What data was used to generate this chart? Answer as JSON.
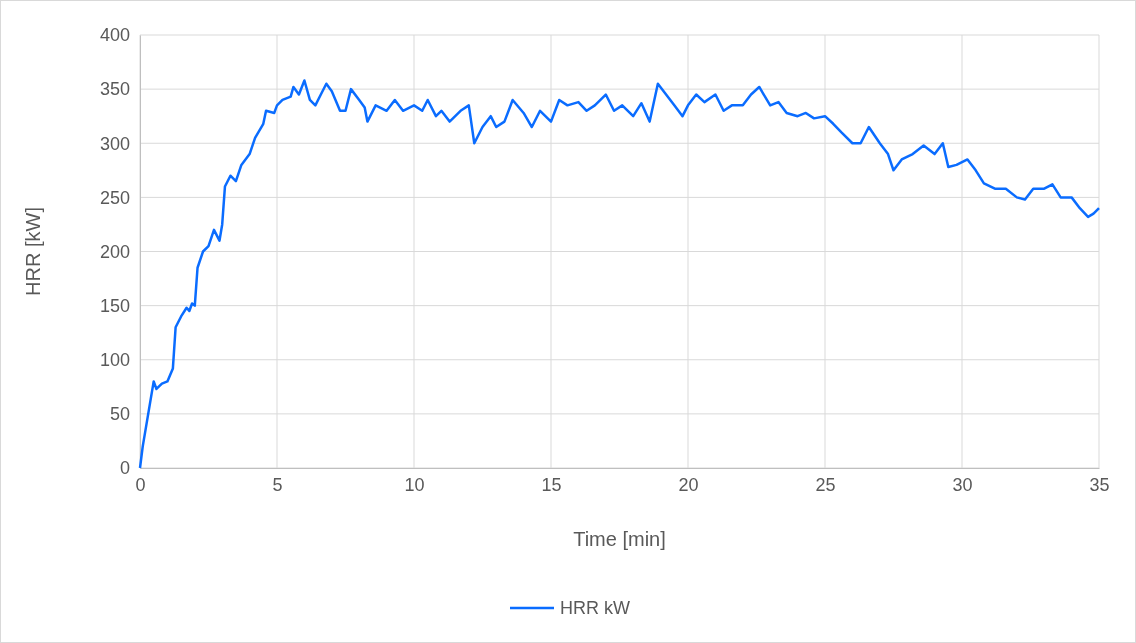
{
  "chart_data": {
    "type": "line",
    "xlabel": "Time [min]",
    "ylabel": "HRR [kW]",
    "x": [
      0,
      0.1,
      0.3,
      0.5,
      0.6,
      0.8,
      1.0,
      1.2,
      1.3,
      1.5,
      1.7,
      1.8,
      1.9,
      2.0,
      2.1,
      2.3,
      2.5,
      2.7,
      2.9,
      3.0,
      3.1,
      3.3,
      3.5,
      3.7,
      4.0,
      4.2,
      4.5,
      4.6,
      4.9,
      5.0,
      5.2,
      5.5,
      5.6,
      5.8,
      6.0,
      6.2,
      6.4,
      6.6,
      6.8,
      7.0,
      7.3,
      7.5,
      7.7,
      8.0,
      8.2,
      8.3,
      8.6,
      9.0,
      9.3,
      9.6,
      10.0,
      10.3,
      10.5,
      10.8,
      11.0,
      11.3,
      11.7,
      12.0,
      12.2,
      12.5,
      12.8,
      13.0,
      13.3,
      13.6,
      14.0,
      14.3,
      14.6,
      15.0,
      15.3,
      15.6,
      16.0,
      16.3,
      16.6,
      17.0,
      17.3,
      17.6,
      18.0,
      18.3,
      18.6,
      18.9,
      19.2,
      19.5,
      19.8,
      20.0,
      20.3,
      20.6,
      21.0,
      21.3,
      21.6,
      22.0,
      22.3,
      22.6,
      23.0,
      23.3,
      23.6,
      24.0,
      24.3,
      24.6,
      25.0,
      25.3,
      25.6,
      26.0,
      26.3,
      26.6,
      27.0,
      27.3,
      27.5,
      27.8,
      28.2,
      28.6,
      29.0,
      29.3,
      29.5,
      29.8,
      30.2,
      30.5,
      30.8,
      31.2,
      31.6,
      32.0,
      32.3,
      32.6,
      33.0,
      33.3,
      33.6,
      34.0,
      34.3,
      34.6,
      34.8,
      35.0
    ],
    "series": [
      {
        "name": "HRR kW",
        "color": "#0a6cff",
        "values": [
          0,
          20,
          50,
          80,
          73,
          78,
          80,
          92,
          130,
          140,
          148,
          145,
          152,
          150,
          185,
          200,
          205,
          220,
          210,
          225,
          260,
          270,
          265,
          280,
          290,
          305,
          318,
          330,
          328,
          335,
          340,
          343,
          352,
          345,
          358,
          340,
          335,
          345,
          355,
          348,
          330,
          330,
          350,
          340,
          333,
          320,
          335,
          330,
          340,
          330,
          335,
          330,
          340,
          325,
          330,
          320,
          330,
          335,
          300,
          315,
          325,
          315,
          320,
          340,
          328,
          315,
          330,
          320,
          340,
          335,
          338,
          330,
          335,
          345,
          330,
          335,
          325,
          337,
          320,
          355,
          345,
          335,
          325,
          335,
          345,
          338,
          345,
          330,
          335,
          335,
          345,
          352,
          335,
          338,
          328,
          325,
          328,
          323,
          325,
          318,
          310,
          300,
          300,
          315,
          300,
          290,
          275,
          285,
          290,
          298,
          290,
          300,
          278,
          280,
          285,
          275,
          263,
          258,
          258,
          250,
          248,
          258,
          258,
          262,
          250,
          250,
          240,
          232,
          235,
          240
        ]
      }
    ],
    "xlim": [
      0,
      35
    ],
    "xticks": [
      0,
      5,
      10,
      15,
      20,
      25,
      30,
      35
    ],
    "ylim": [
      0,
      400
    ],
    "yticks": [
      0,
      50,
      100,
      150,
      200,
      250,
      300,
      350,
      400
    ],
    "grid": true,
    "legend": "bottom",
    "marker": "none",
    "line_style": "solid"
  }
}
